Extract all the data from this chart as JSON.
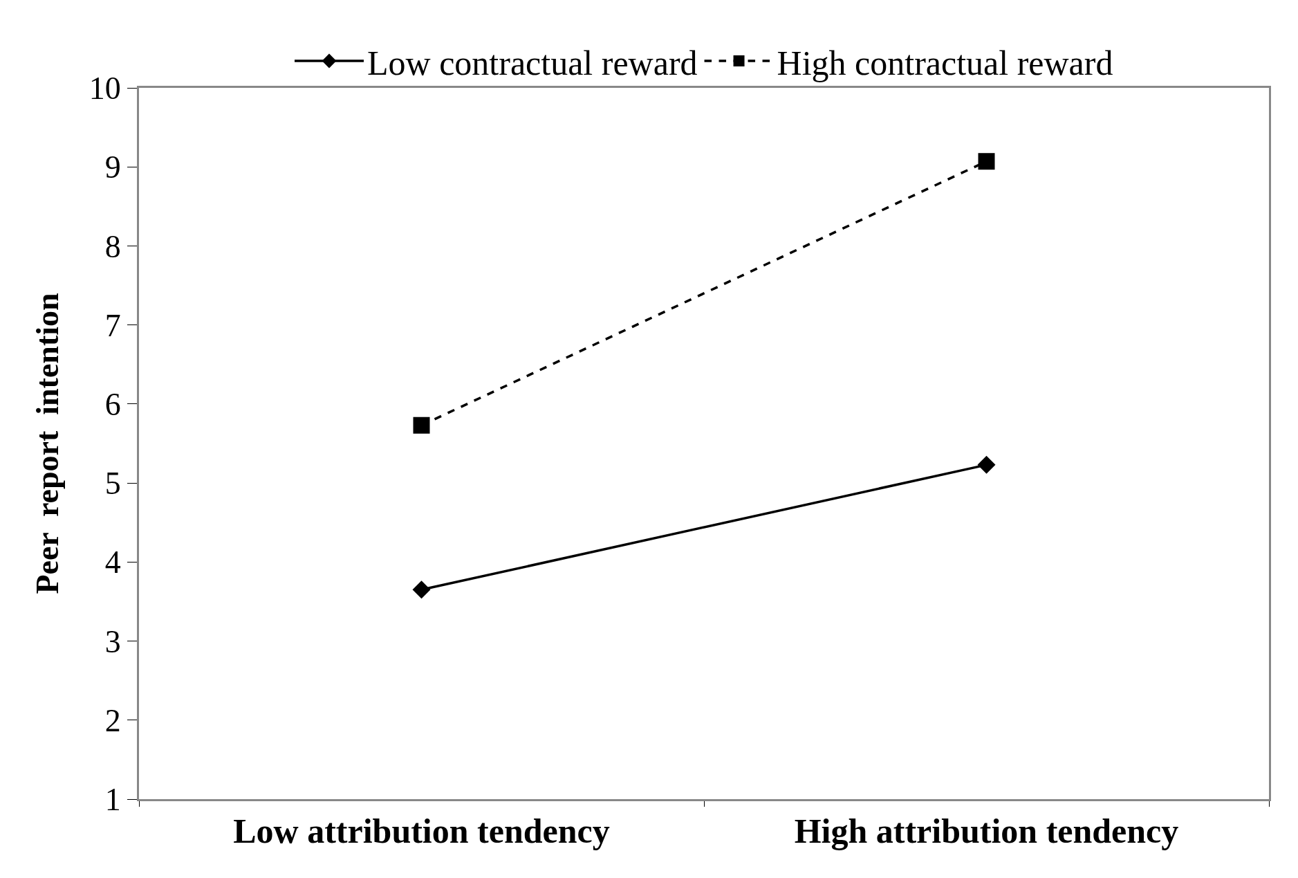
{
  "chart_data": {
    "type": "line",
    "ylabel": "Peer  report  intention",
    "categories": [
      "Low attribution tendency",
      "High attribution tendency"
    ],
    "series": [
      {
        "name": "Low contractual reward",
        "color": "#000000",
        "values": [
          3.65,
          5.23
        ],
        "marker": "diamond",
        "line_style": "solid"
      },
      {
        "name": "High contractual reward",
        "color": "#000000",
        "values": [
          5.73,
          9.07
        ],
        "marker": "square",
        "line_style": "dashed"
      }
    ],
    "ylim": [
      1,
      10
    ],
    "yticks": [
      1,
      2,
      3,
      4,
      5,
      6,
      7,
      8,
      9,
      10
    ],
    "grid": false,
    "legend": "top"
  }
}
